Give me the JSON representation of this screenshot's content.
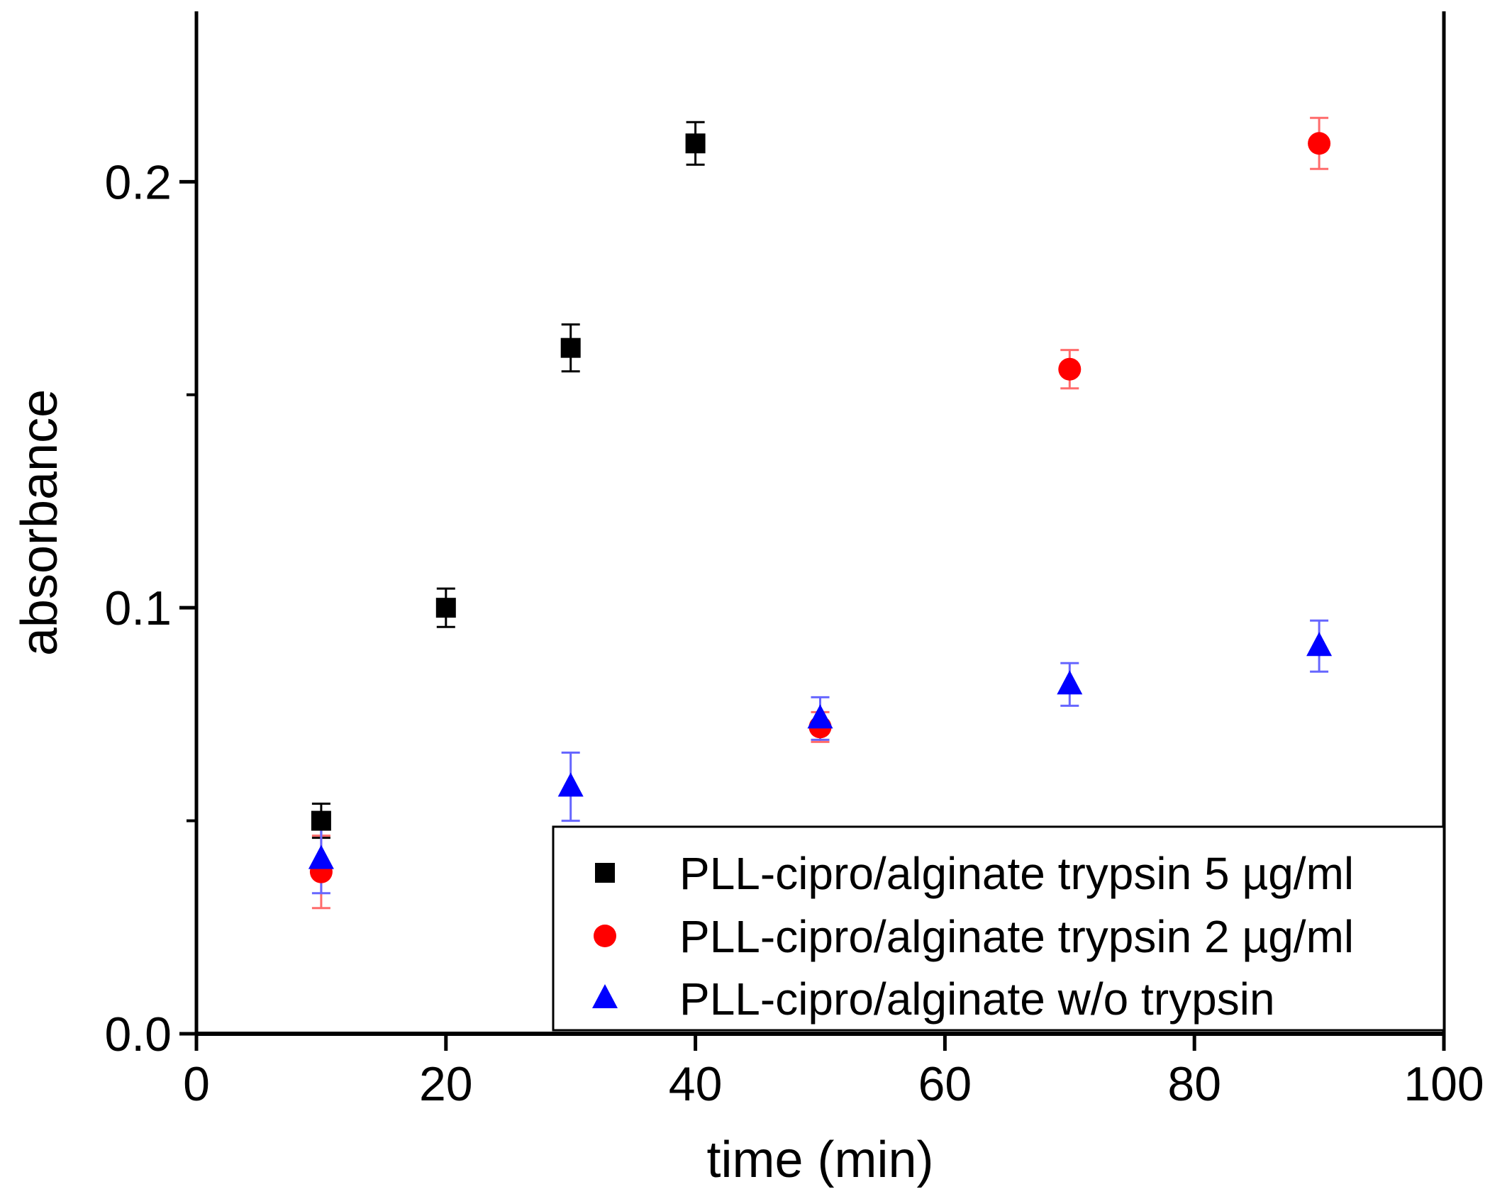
{
  "chart_data": {
    "type": "scatter",
    "title": "",
    "xlabel": "time (min)",
    "ylabel": "absorbance",
    "xlim": [
      0,
      100
    ],
    "ylim": [
      0,
      0.24
    ],
    "xticks": [
      0,
      20,
      40,
      60,
      80,
      100
    ],
    "xtick_labels": [
      "0",
      "20",
      "40",
      "60",
      "80",
      "100"
    ],
    "yticks": [
      0.0,
      0.1,
      0.2
    ],
    "ytick_labels": [
      "0.0",
      "0.1",
      "0.2"
    ],
    "y_minor_ticks": [
      0.05,
      0.15
    ],
    "grid": false,
    "legend_position": "bottom-right",
    "series": [
      {
        "name": "PLL-cipro/alginate trypsin 5 µg/ml",
        "marker": "square",
        "color": "#000000",
        "errcolor": "#000000",
        "x": [
          10,
          20,
          30,
          40
        ],
        "y": [
          0.05,
          0.1,
          0.161,
          0.209
        ],
        "err": [
          0.004,
          0.0045,
          0.0055,
          0.005
        ]
      },
      {
        "name": "PLL-cipro/alginate trypsin 2 µg/ml",
        "marker": "circle",
        "color": "#ff0000",
        "errcolor": "#ff6b6b",
        "x": [
          10,
          50,
          70,
          90
        ],
        "y": [
          0.038,
          0.072,
          0.156,
          0.209
        ],
        "err": [
          0.0085,
          0.0035,
          0.0045,
          0.006
        ]
      },
      {
        "name": "PLL-cipro/alginate w/o trypsin",
        "marker": "triangle",
        "color": "#0000ff",
        "errcolor": "#6666ff",
        "x": [
          10,
          30,
          50,
          70,
          90
        ],
        "y": [
          0.041,
          0.058,
          0.074,
          0.082,
          0.091
        ],
        "err": [
          0.008,
          0.008,
          0.005,
          0.005,
          0.006
        ]
      }
    ]
  }
}
